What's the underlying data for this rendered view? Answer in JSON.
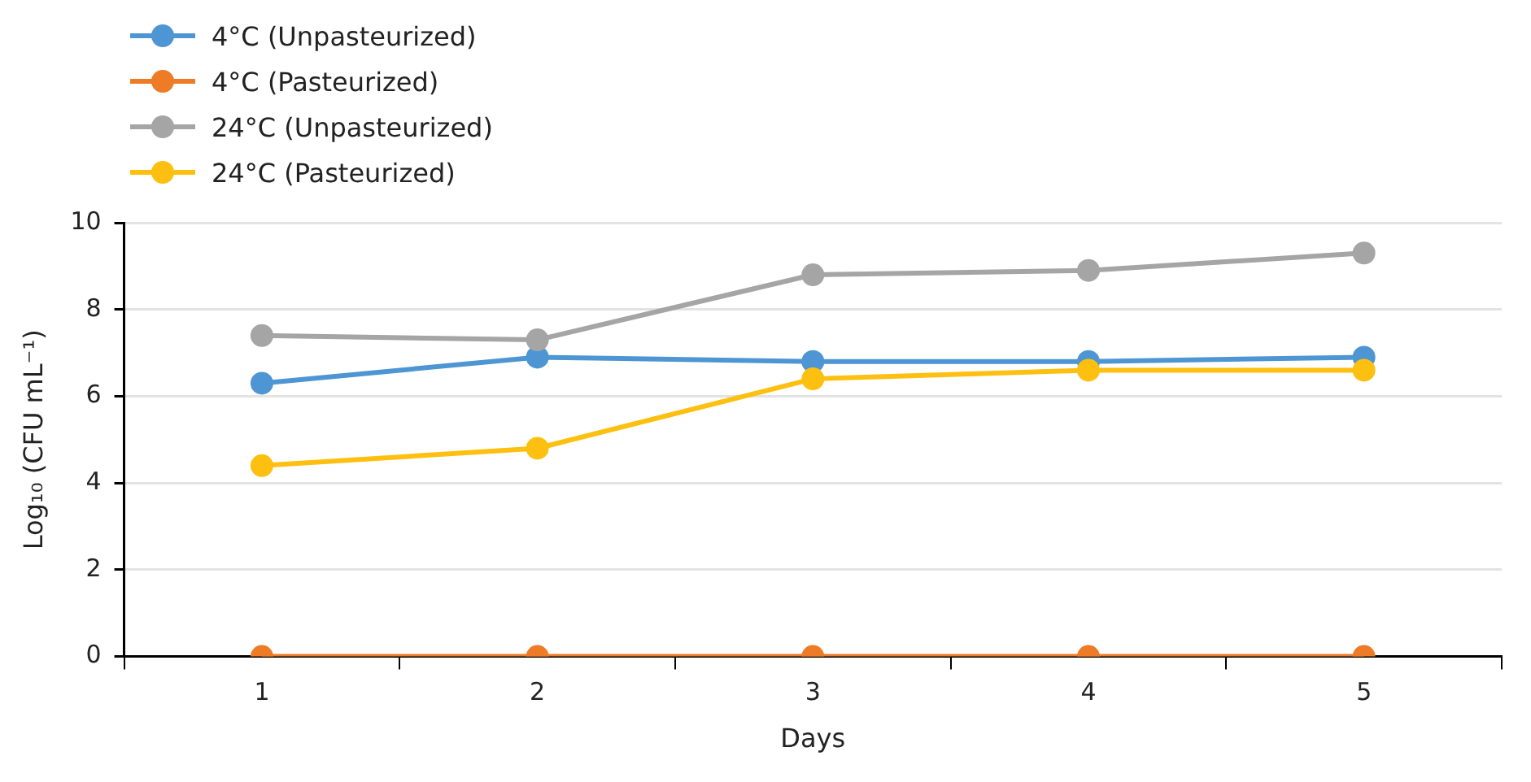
{
  "chart_data": {
    "type": "line",
    "xlabel": "Days",
    "ylabel": "Log₁₀ (CFU mL⁻¹)",
    "categories": [
      "1",
      "2",
      "3",
      "4",
      "5"
    ],
    "series": [
      {
        "name": "4°C (Unpasteurized)",
        "color": "#4e96d3",
        "values": [
          6.3,
          6.9,
          6.8,
          6.8,
          6.9
        ]
      },
      {
        "name": "4°C (Pasteurized)",
        "color": "#ee7b26",
        "values": [
          0,
          0,
          0,
          0,
          0
        ]
      },
      {
        "name": "24°C (Unpasteurized)",
        "color": "#a5a5a5",
        "values": [
          7.4,
          7.3,
          8.8,
          8.9,
          9.3
        ]
      },
      {
        "name": "24°C (Pasteurized)",
        "color": "#fdc010",
        "values": [
          4.4,
          4.8,
          6.4,
          6.6,
          6.6
        ]
      }
    ],
    "ylim": [
      0,
      10
    ],
    "yticks": [
      0,
      2,
      4,
      6,
      8,
      10
    ],
    "grid": "y",
    "legend": "top left",
    "marker": "circle",
    "line_style": "solid"
  }
}
